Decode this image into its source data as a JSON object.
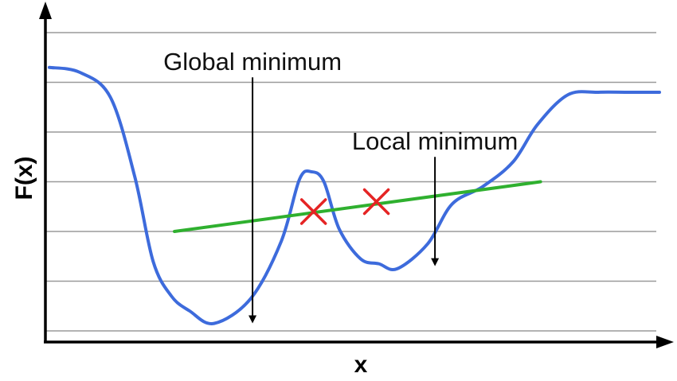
{
  "chart_data": {
    "type": "line",
    "xlabel": "x",
    "ylabel": "F(x)",
    "xlim": [
      0,
      100
    ],
    "ylim": [
      0,
      6
    ],
    "gridlines": [
      0.2,
      1.2,
      2.2,
      3.2,
      4.2,
      5.2,
      6.2
    ],
    "grid": true,
    "series": [
      {
        "values_x": [
          0,
          5,
          10,
          14,
          17,
          20,
          23,
          27,
          33,
          38,
          41,
          43,
          45,
          47.5,
          51,
          54,
          57,
          62,
          66,
          71,
          76,
          80,
          85,
          90,
          95,
          100
        ],
        "values_y": [
          5.5,
          5.4,
          4.9,
          3.3,
          1.6,
          0.9,
          0.6,
          0.35,
          0.85,
          2.0,
          3.25,
          3.4,
          3.2,
          2.25,
          1.65,
          1.55,
          1.45,
          1.95,
          2.75,
          3.1,
          3.6,
          4.35,
          4.95,
          5.0,
          5.0,
          5.0
        ],
        "color": "#3d6bdc"
      }
    ],
    "chord": {
      "x": [
        20.5,
        80.5
      ],
      "y": [
        2.2,
        3.2
      ],
      "color": "#2fb02f"
    },
    "crosses": {
      "x": [
        43.3,
        53.6
      ],
      "y": [
        2.6,
        2.8
      ],
      "color": "#e52424"
    },
    "annotations": [
      {
        "text": "Global minimum",
        "text_x": 33.3,
        "text_y": 5.45,
        "arrow_from": [
          33.3,
          5.3
        ],
        "arrow_to": [
          33.3,
          0.4
        ]
      },
      {
        "text": "Local minimum",
        "text_x": 63.2,
        "text_y": 3.85,
        "arrow_from": [
          63.2,
          3.7
        ],
        "arrow_to": [
          63.2,
          1.55
        ]
      }
    ]
  }
}
